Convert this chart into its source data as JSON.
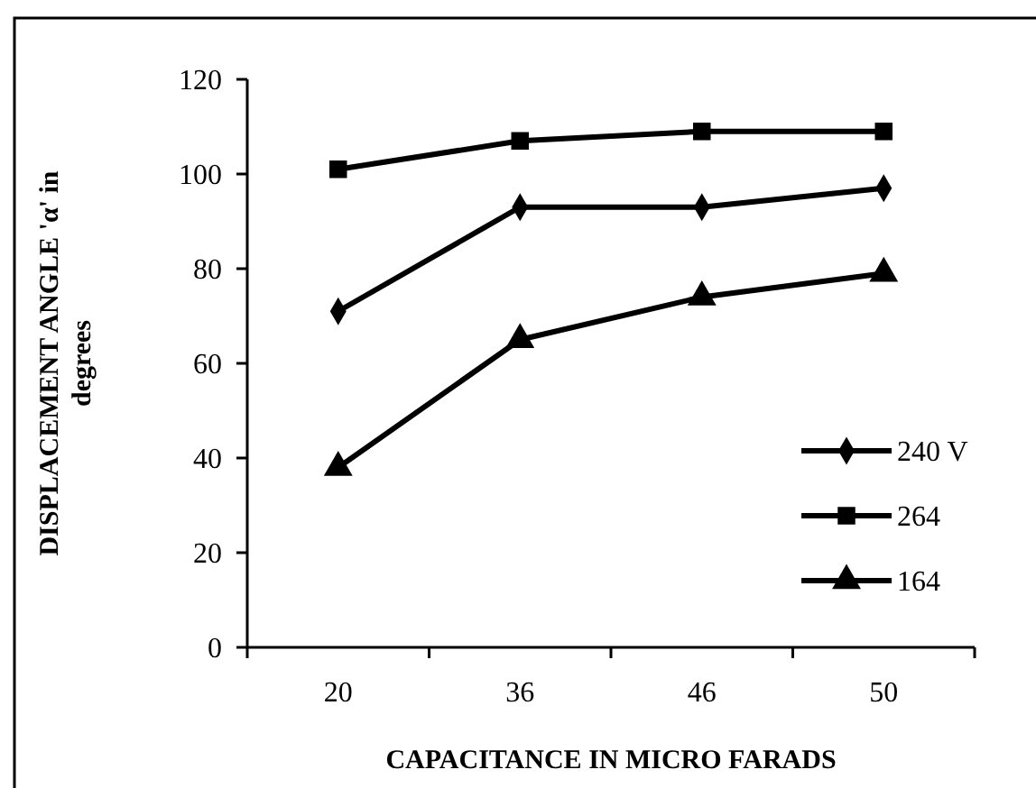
{
  "chart_data": {
    "type": "line",
    "xlabel": "CAPACITANCE IN MICRO FARADS",
    "ylabel": "DISPLACEMENT ANGLE 'α' in degrees",
    "categories": [
      "20",
      "36",
      "46",
      "50"
    ],
    "ylim": [
      0,
      120
    ],
    "yticks": [
      0,
      20,
      40,
      60,
      80,
      100,
      120
    ],
    "grid": false,
    "legend": "right",
    "line_style": "solid",
    "series": [
      {
        "name": "240 V",
        "color": "#000000",
        "marker": "diamond",
        "values": [
          71,
          93,
          93,
          97
        ]
      },
      {
        "name": "264",
        "color": "#000000",
        "marker": "square",
        "values": [
          101,
          107,
          109,
          109
        ]
      },
      {
        "name": "164",
        "color": "#000000",
        "marker": "triangle",
        "values": [
          38,
          65,
          74,
          79
        ]
      }
    ]
  }
}
